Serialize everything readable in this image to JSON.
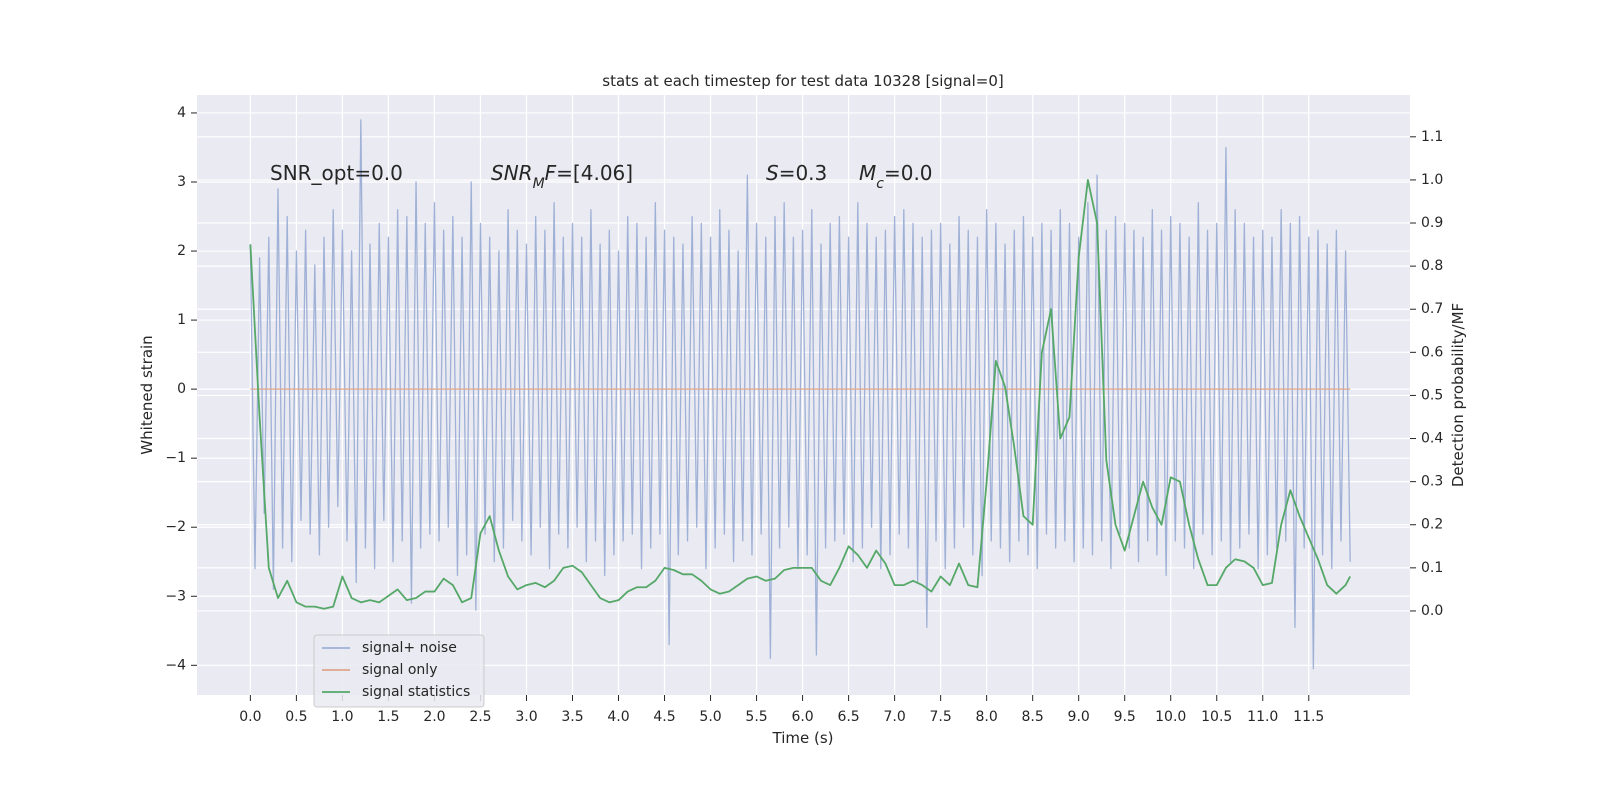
{
  "chart_data": {
    "type": "line",
    "title": "stats at each timestep for test data 10328 [signal=0]",
    "x_label": "Time (s)",
    "y_label": "Whitened strain",
    "y2_label": "Detection probability/MF",
    "xlim": [
      -0.58,
      12.6
    ],
    "ylim": [
      -4.43,
      4.26
    ],
    "y2lim": [
      -0.195,
      1.197
    ],
    "grid": true,
    "legend": "lower left",
    "xticks": [
      {
        "value": 0,
        "label": "0.0"
      },
      {
        "value": 0.5,
        "label": "0.5"
      },
      {
        "value": 1,
        "label": "1.0"
      },
      {
        "value": 1.5,
        "label": "1.5"
      },
      {
        "value": 2,
        "label": "2.0"
      },
      {
        "value": 2.5,
        "label": "2.5"
      },
      {
        "value": 3,
        "label": "3.0"
      },
      {
        "value": 3.5,
        "label": "3.5"
      },
      {
        "value": 4,
        "label": "4.0"
      },
      {
        "value": 4.5,
        "label": "4.5"
      },
      {
        "value": 5,
        "label": "5.0"
      },
      {
        "value": 5.5,
        "label": "5.5"
      },
      {
        "value": 6,
        "label": "6.0"
      },
      {
        "value": 6.5,
        "label": "6.5"
      },
      {
        "value": 7,
        "label": "7.0"
      },
      {
        "value": 7.5,
        "label": "7.5"
      },
      {
        "value": 8,
        "label": "8.0"
      },
      {
        "value": 8.5,
        "label": "8.5"
      },
      {
        "value": 9,
        "label": "9.0"
      },
      {
        "value": 9.5,
        "label": "9.5"
      },
      {
        "value": 10,
        "label": "10.0"
      },
      {
        "value": 10.5,
        "label": "10.5"
      },
      {
        "value": 11,
        "label": "11.0"
      },
      {
        "value": 11.5,
        "label": "11.5"
      }
    ],
    "yticks": [
      {
        "value": -4,
        "label": "−4"
      },
      {
        "value": -3,
        "label": "−3"
      },
      {
        "value": -2,
        "label": "−2"
      },
      {
        "value": -1,
        "label": "−1"
      },
      0,
      1,
      2,
      3,
      4
    ],
    "y2ticks": [
      {
        "value": 0,
        "label": "0.0"
      },
      {
        "value": 0.1,
        "label": "0.1"
      },
      {
        "value": 0.2,
        "label": "0.2"
      },
      {
        "value": 0.3,
        "label": "0.3"
      },
      {
        "value": 0.4,
        "label": "0.4"
      },
      {
        "value": 0.5,
        "label": "0.5"
      },
      {
        "value": 0.6,
        "label": "0.6"
      },
      {
        "value": 0.7,
        "label": "0.7"
      },
      {
        "value": 0.8,
        "label": "0.8"
      },
      {
        "value": 0.9,
        "label": "0.9"
      },
      {
        "value": 1,
        "label": "1.0"
      },
      {
        "value": 1.1,
        "label": "1.1"
      }
    ],
    "annotations": [
      {
        "parts": [
          {
            "t": "SNR_opt=0.0"
          }
        ]
      },
      {
        "parts": [
          {
            "t": "SNR",
            "style": "italic"
          },
          {
            "t": "M",
            "style": "sub"
          },
          {
            "t": "F",
            "style": "italic"
          },
          {
            "t": "=[4.06]"
          }
        ]
      },
      {
        "parts": [
          {
            "t": "S",
            "style": "italic"
          },
          {
            "t": "=0.3"
          }
        ]
      },
      {
        "parts": [
          {
            "t": "M",
            "style": "italic"
          },
          {
            "t": "c",
            "style": "sub"
          },
          {
            "t": "=0.0"
          }
        ]
      }
    ],
    "series": [
      {
        "name": "signal+ noise",
        "color": "#9fb1d6",
        "axis": "y",
        "x": [
          0,
          0.05,
          0.1,
          0.15,
          0.2,
          0.25,
          0.3,
          0.35,
          0.4,
          0.45,
          0.5,
          0.55,
          0.6,
          0.65,
          0.7,
          0.75,
          0.8,
          0.85,
          0.9,
          0.95,
          1,
          1.05,
          1.1,
          1.15,
          1.2,
          1.25,
          1.3,
          1.35,
          1.4,
          1.45,
          1.5,
          1.55,
          1.6,
          1.65,
          1.7,
          1.75,
          1.8,
          1.85,
          1.9,
          1.95,
          2,
          2.05,
          2.1,
          2.15,
          2.2,
          2.25,
          2.3,
          2.35,
          2.4,
          2.45,
          2.5,
          2.55,
          2.6,
          2.65,
          2.7,
          2.75,
          2.8,
          2.85,
          2.9,
          2.95,
          3,
          3.05,
          3.1,
          3.15,
          3.2,
          3.25,
          3.3,
          3.35,
          3.4,
          3.45,
          3.5,
          3.55,
          3.6,
          3.65,
          3.7,
          3.75,
          3.8,
          3.85,
          3.9,
          3.95,
          4,
          4.05,
          4.1,
          4.15,
          4.2,
          4.25,
          4.3,
          4.35,
          4.4,
          4.45,
          4.5,
          4.55,
          4.6,
          4.65,
          4.7,
          4.75,
          4.8,
          4.85,
          4.9,
          4.95,
          5,
          5.05,
          5.1,
          5.15,
          5.2,
          5.25,
          5.3,
          5.35,
          5.4,
          5.45,
          5.5,
          5.55,
          5.6,
          5.65,
          5.7,
          5.75,
          5.8,
          5.85,
          5.9,
          5.95,
          6,
          6.05,
          6.1,
          6.15,
          6.2,
          6.25,
          6.3,
          6.35,
          6.4,
          6.45,
          6.5,
          6.55,
          6.6,
          6.65,
          6.7,
          6.75,
          6.8,
          6.85,
          6.9,
          6.95,
          7,
          7.05,
          7.1,
          7.15,
          7.2,
          7.25,
          7.3,
          7.35,
          7.4,
          7.45,
          7.5,
          7.55,
          7.6,
          7.65,
          7.7,
          7.75,
          7.8,
          7.85,
          7.9,
          7.95,
          8,
          8.05,
          8.1,
          8.15,
          8.2,
          8.25,
          8.3,
          8.35,
          8.4,
          8.45,
          8.5,
          8.55,
          8.6,
          8.65,
          8.7,
          8.75,
          8.8,
          8.85,
          8.9,
          8.95,
          9,
          9.05,
          9.1,
          9.15,
          9.2,
          9.25,
          9.3,
          9.35,
          9.4,
          9.45,
          9.5,
          9.55,
          9.6,
          9.65,
          9.7,
          9.75,
          9.8,
          9.85,
          9.9,
          9.95,
          10,
          10.05,
          10.1,
          10.15,
          10.2,
          10.25,
          10.3,
          10.35,
          10.4,
          10.45,
          10.5,
          10.55,
          10.6,
          10.65,
          10.7,
          10.75,
          10.8,
          10.85,
          10.9,
          10.95,
          11,
          11.05,
          11.1,
          11.15,
          11.2,
          11.25,
          11.3,
          11.35,
          11.4,
          11.45,
          11.5,
          11.55,
          11.6,
          11.65,
          11.7,
          11.75,
          11.8,
          11.85,
          11.9,
          11.95
        ],
        "values": [
          2.1,
          -2.6,
          1.9,
          -1.8,
          2.2,
          -2.9,
          2.9,
          -2.3,
          2.5,
          -2.5,
          2.0,
          -1.9,
          2.3,
          -2.1,
          1.8,
          -2.4,
          2.2,
          -2.0,
          2.6,
          -1.7,
          2.3,
          -2.2,
          2.0,
          -2.8,
          3.9,
          -2.3,
          2.1,
          -2.6,
          2.4,
          -1.9,
          2.2,
          -2.5,
          2.6,
          -2.2,
          2.5,
          -3.1,
          3.0,
          -2.3,
          2.4,
          -2.1,
          2.7,
          -2.2,
          2.3,
          -2.0,
          2.5,
          -2.7,
          2.2,
          -2.4,
          3.0,
          -3.2,
          2.4,
          -2.1,
          2.2,
          -2.5,
          2.0,
          -2.3,
          2.6,
          -1.9,
          2.3,
          -2.2,
          2.1,
          -2.4,
          2.5,
          -2.0,
          2.3,
          -2.6,
          2.7,
          -2.1,
          2.2,
          -2.3,
          2.4,
          -2.0,
          2.2,
          -2.5,
          2.6,
          -2.2,
          2.1,
          -2.7,
          2.3,
          -2.4,
          2.0,
          -2.2,
          2.5,
          -2.1,
          2.4,
          -2.6,
          2.2,
          -2.3,
          2.7,
          -2.1,
          2.3,
          -3.7,
          2.2,
          -2.4,
          2.1,
          -2.2,
          2.5,
          -2.0,
          2.4,
          -2.6,
          2.2,
          -2.3,
          2.6,
          -2.1,
          2.3,
          -2.5,
          2.0,
          -2.2,
          3.1,
          -2.4,
          2.4,
          -2.1,
          2.2,
          -3.9,
          2.5,
          -2.3,
          2.7,
          -2.0,
          2.2,
          -2.6,
          2.3,
          -2.4,
          2.6,
          -3.85,
          2.1,
          -2.3,
          2.4,
          -2.2,
          2.5,
          -2.1,
          2.2,
          -2.5,
          2.7,
          -2.3,
          2.4,
          -2.0,
          2.2,
          -2.6,
          2.3,
          -2.4,
          2.5,
          -2.1,
          2.6,
          -2.3,
          2.4,
          -2.8,
          2.2,
          -3.45,
          2.3,
          -2.2,
          2.4,
          -2.6,
          2.1,
          -2.3,
          2.5,
          -2.0,
          2.3,
          -2.4,
          2.2,
          -2.7,
          2.6,
          -2.2,
          2.4,
          -2.3,
          2.1,
          -2.5,
          2.3,
          -2.2,
          2.5,
          -2.4,
          2.2,
          -2.6,
          2.4,
          -2.1,
          2.3,
          -2.3,
          2.6,
          -2.2,
          2.4,
          -2.5,
          2.2,
          -2.3,
          2.7,
          -2.4,
          3.1,
          -2.2,
          2.3,
          -2.6,
          2.5,
          -2.1,
          2.4,
          -2.3,
          2.3,
          -2.5,
          2.2,
          -2.2,
          2.6,
          -2.4,
          2.3,
          -2.7,
          2.5,
          -2.2,
          2.4,
          -2.3,
          2.2,
          -2.6,
          2.7,
          -2.1,
          2.3,
          -2.4,
          2.4,
          -2.2,
          3.5,
          -2.5,
          2.6,
          -2.3,
          2.4,
          -2.1,
          2.2,
          -2.6,
          2.3,
          -2.4,
          2.2,
          -2.3,
          2.6,
          -2.2,
          2.4,
          -3.45,
          2.5,
          -2.3,
          2.2,
          -4.05,
          2.3,
          -2.4,
          2.1,
          -2.6,
          2.3,
          -2.2,
          2.0,
          -2.5
        ]
      },
      {
        "name": "signal only",
        "color": "#e2a68a",
        "axis": "y",
        "x": [
          0,
          11.95
        ],
        "values": [
          0,
          0
        ]
      },
      {
        "name": "signal statistics",
        "color": "#55a868",
        "axis": "y2",
        "x": [
          0,
          0.1,
          0.2,
          0.3,
          0.4,
          0.5,
          0.6,
          0.7,
          0.8,
          0.9,
          1,
          1.1,
          1.2,
          1.3,
          1.4,
          1.5,
          1.6,
          1.7,
          1.8,
          1.9,
          2,
          2.1,
          2.2,
          2.3,
          2.4,
          2.5,
          2.6,
          2.7,
          2.8,
          2.9,
          3,
          3.1,
          3.2,
          3.3,
          3.4,
          3.5,
          3.6,
          3.7,
          3.8,
          3.9,
          4,
          4.1,
          4.2,
          4.3,
          4.4,
          4.5,
          4.6,
          4.7,
          4.8,
          4.9,
          5,
          5.1,
          5.2,
          5.3,
          5.4,
          5.5,
          5.6,
          5.7,
          5.8,
          5.9,
          6,
          6.1,
          6.2,
          6.3,
          6.4,
          6.5,
          6.6,
          6.7,
          6.8,
          6.9,
          7,
          7.1,
          7.2,
          7.3,
          7.4,
          7.5,
          7.6,
          7.7,
          7.8,
          7.9,
          8,
          8.1,
          8.2,
          8.3,
          8.4,
          8.5,
          8.6,
          8.7,
          8.8,
          8.9,
          9,
          9.1,
          9.2,
          9.3,
          9.4,
          9.5,
          9.6,
          9.7,
          9.8,
          9.9,
          10,
          10.1,
          10.2,
          10.3,
          10.4,
          10.5,
          10.6,
          10.7,
          10.8,
          10.9,
          11,
          11.1,
          11.2,
          11.3,
          11.4,
          11.5,
          11.6,
          11.7,
          11.8,
          11.9,
          11.95
        ],
        "values": [
          0.85,
          0.45,
          0.1,
          0.03,
          0.07,
          0.02,
          0.01,
          0.01,
          0.005,
          0.01,
          0.08,
          0.03,
          0.02,
          0.025,
          0.02,
          0.035,
          0.05,
          0.025,
          0.03,
          0.045,
          0.045,
          0.075,
          0.06,
          0.02,
          0.03,
          0.18,
          0.22,
          0.14,
          0.08,
          0.05,
          0.06,
          0.065,
          0.055,
          0.07,
          0.1,
          0.105,
          0.09,
          0.06,
          0.03,
          0.02,
          0.025,
          0.045,
          0.055,
          0.055,
          0.07,
          0.1,
          0.095,
          0.085,
          0.085,
          0.07,
          0.05,
          0.04,
          0.045,
          0.06,
          0.075,
          0.08,
          0.07,
          0.075,
          0.095,
          0.1,
          0.1,
          0.1,
          0.07,
          0.06,
          0.1,
          0.15,
          0.13,
          0.1,
          0.14,
          0.11,
          0.06,
          0.06,
          0.07,
          0.06,
          0.045,
          0.08,
          0.06,
          0.11,
          0.06,
          0.055,
          0.3,
          0.58,
          0.52,
          0.38,
          0.22,
          0.2,
          0.6,
          0.7,
          0.4,
          0.45,
          0.82,
          1.0,
          0.9,
          0.35,
          0.2,
          0.14,
          0.22,
          0.3,
          0.24,
          0.2,
          0.31,
          0.3,
          0.2,
          0.12,
          0.06,
          0.06,
          0.1,
          0.12,
          0.115,
          0.1,
          0.06,
          0.065,
          0.2,
          0.28,
          0.22,
          0.17,
          0.12,
          0.06,
          0.04,
          0.06,
          0.08
        ]
      }
    ]
  }
}
